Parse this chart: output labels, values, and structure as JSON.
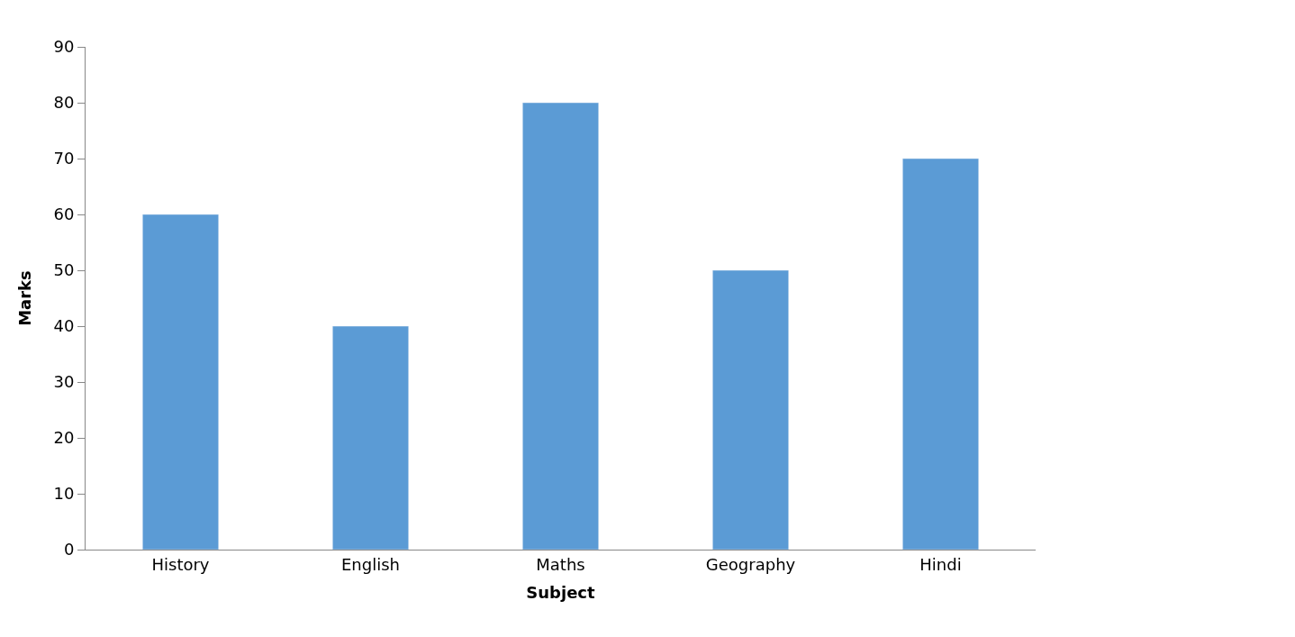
{
  "chart_data": {
    "type": "bar",
    "xlabel": "Subject",
    "ylabel": "Marks",
    "categories": [
      "History",
      "English",
      "Maths",
      "Geography",
      "Hindi"
    ],
    "values": [
      60,
      40,
      80,
      50,
      70
    ],
    "color": "#5b9bd5",
    "ylim": [
      0,
      90
    ],
    "yticks": [
      0,
      10,
      20,
      30,
      40,
      50,
      60,
      70,
      80,
      90
    ]
  }
}
